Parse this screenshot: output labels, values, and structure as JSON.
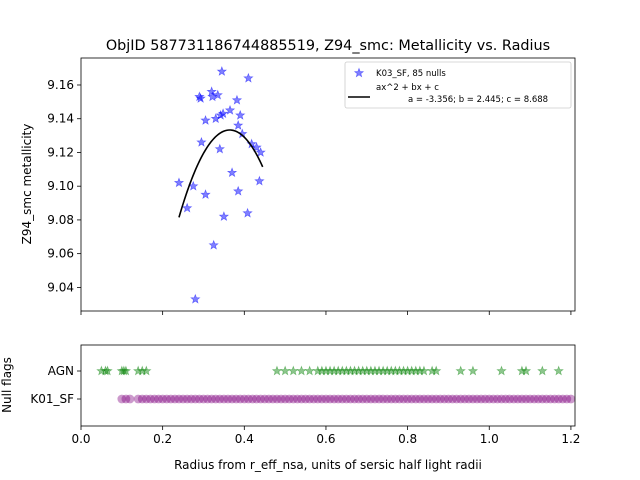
{
  "chart_data": [
    {
      "type": "scatter",
      "title": "ObjID 587731186744885519, Z94_smc: Metallicity vs. Radius",
      "ylabel": "Z94_smc metallicity",
      "xlim": [
        0.0,
        1.21
      ],
      "ylim": [
        9.026,
        9.176
      ],
      "yticks": [
        "9.04",
        "9.06",
        "9.08",
        "9.10",
        "9.12",
        "9.14",
        "9.16"
      ],
      "ytick_values": [
        9.04,
        9.06,
        9.08,
        9.1,
        9.12,
        9.14,
        9.16
      ],
      "legend": {
        "placement": "top-right",
        "scatter_label": "K03_SF, 85 nulls",
        "fit_label": "ax^2 + bx + c",
        "fit_params": "a = -3.356; b = 2.445; c = 8.688"
      },
      "series": [
        {
          "name": "K03_SF, 85 nulls",
          "marker": "star",
          "color": "#0000ff",
          "points": [
            [
              0.24,
              9.102
            ],
            [
              0.26,
              9.087
            ],
            [
              0.275,
              9.1
            ],
            [
              0.28,
              9.033
            ],
            [
              0.29,
              9.153
            ],
            [
              0.293,
              9.152
            ],
            [
              0.295,
              9.126
            ],
            [
              0.305,
              9.139
            ],
            [
              0.305,
              9.095
            ],
            [
              0.32,
              9.156
            ],
            [
              0.322,
              9.153
            ],
            [
              0.325,
              9.065
            ],
            [
              0.33,
              9.14
            ],
            [
              0.335,
              9.154
            ],
            [
              0.34,
              9.122
            ],
            [
              0.342,
              9.142
            ],
            [
              0.345,
              9.168
            ],
            [
              0.348,
              9.143
            ],
            [
              0.35,
              9.082
            ],
            [
              0.365,
              9.145
            ],
            [
              0.37,
              9.108
            ],
            [
              0.382,
              9.151
            ],
            [
              0.385,
              9.097
            ],
            [
              0.385,
              9.136
            ],
            [
              0.39,
              9.142
            ],
            [
              0.395,
              9.131
            ],
            [
              0.408,
              9.084
            ],
            [
              0.41,
              9.164
            ],
            [
              0.418,
              9.125
            ],
            [
              0.43,
              9.123
            ],
            [
              0.437,
              9.103
            ],
            [
              0.44,
              9.12
            ]
          ]
        },
        {
          "name": "ax^2 + bx + c",
          "type": "line",
          "color": "#000000",
          "coefficients": {
            "a": -3.356,
            "b": 2.445,
            "c": 8.688
          },
          "x_range": [
            0.24,
            0.445
          ]
        }
      ]
    },
    {
      "type": "scatter",
      "xlabel": "Radius from r_eff_nsa, units of sersic half light radii",
      "ylabel": "Null flags",
      "xlim": [
        0.0,
        1.21
      ],
      "xticks": [
        "0.0",
        "0.2",
        "0.4",
        "0.6",
        "0.8",
        "1.0",
        "1.2"
      ],
      "xtick_values": [
        0.0,
        0.2,
        0.4,
        0.6,
        0.8,
        1.0,
        1.2
      ],
      "categories": [
        "K01_SF",
        "AGN"
      ],
      "series": [
        {
          "name": "AGN",
          "marker": "star",
          "color": "#008000",
          "x": [
            0.05,
            0.06,
            0.065,
            0.1,
            0.105,
            0.11,
            0.14,
            0.15,
            0.16,
            0.48,
            0.5,
            0.52,
            0.54,
            0.56,
            0.58,
            0.59,
            0.6,
            0.61,
            0.62,
            0.63,
            0.64,
            0.65,
            0.66,
            0.67,
            0.68,
            0.69,
            0.7,
            0.71,
            0.72,
            0.73,
            0.74,
            0.75,
            0.76,
            0.77,
            0.78,
            0.79,
            0.8,
            0.81,
            0.82,
            0.83,
            0.84,
            0.86,
            0.87,
            0.93,
            0.96,
            1.03,
            1.08,
            1.09,
            1.13,
            1.17
          ]
        },
        {
          "name": "K01_SF",
          "marker": "circle",
          "color": "#800080",
          "x": [
            0.1,
            0.11,
            0.12,
            0.14,
            0.15,
            0.16,
            0.17,
            0.18,
            0.19,
            0.2,
            0.21,
            0.22,
            0.23,
            0.24,
            0.25,
            0.26,
            0.27,
            0.28,
            0.29,
            0.3,
            0.31,
            0.32,
            0.33,
            0.34,
            0.35,
            0.36,
            0.37,
            0.38,
            0.39,
            0.4,
            0.41,
            0.42,
            0.43,
            0.44,
            0.45,
            0.46,
            0.47,
            0.48,
            0.49,
            0.5,
            0.51,
            0.52,
            0.53,
            0.54,
            0.55,
            0.56,
            0.57,
            0.58,
            0.59,
            0.6,
            0.61,
            0.62,
            0.63,
            0.64,
            0.65,
            0.66,
            0.67,
            0.68,
            0.69,
            0.7,
            0.71,
            0.72,
            0.73,
            0.74,
            0.75,
            0.76,
            0.77,
            0.78,
            0.79,
            0.8,
            0.81,
            0.82,
            0.83,
            0.84,
            0.85,
            0.86,
            0.87,
            0.88,
            0.89,
            0.9,
            0.91,
            0.92,
            0.93,
            0.94,
            0.95,
            0.96,
            0.97,
            0.98,
            0.99,
            1.0,
            1.01,
            1.02,
            1.03,
            1.04,
            1.05,
            1.06,
            1.07,
            1.08,
            1.09,
            1.1,
            1.11,
            1.12,
            1.13,
            1.14,
            1.15,
            1.16,
            1.17,
            1.18,
            1.19,
            1.2
          ]
        }
      ]
    }
  ]
}
